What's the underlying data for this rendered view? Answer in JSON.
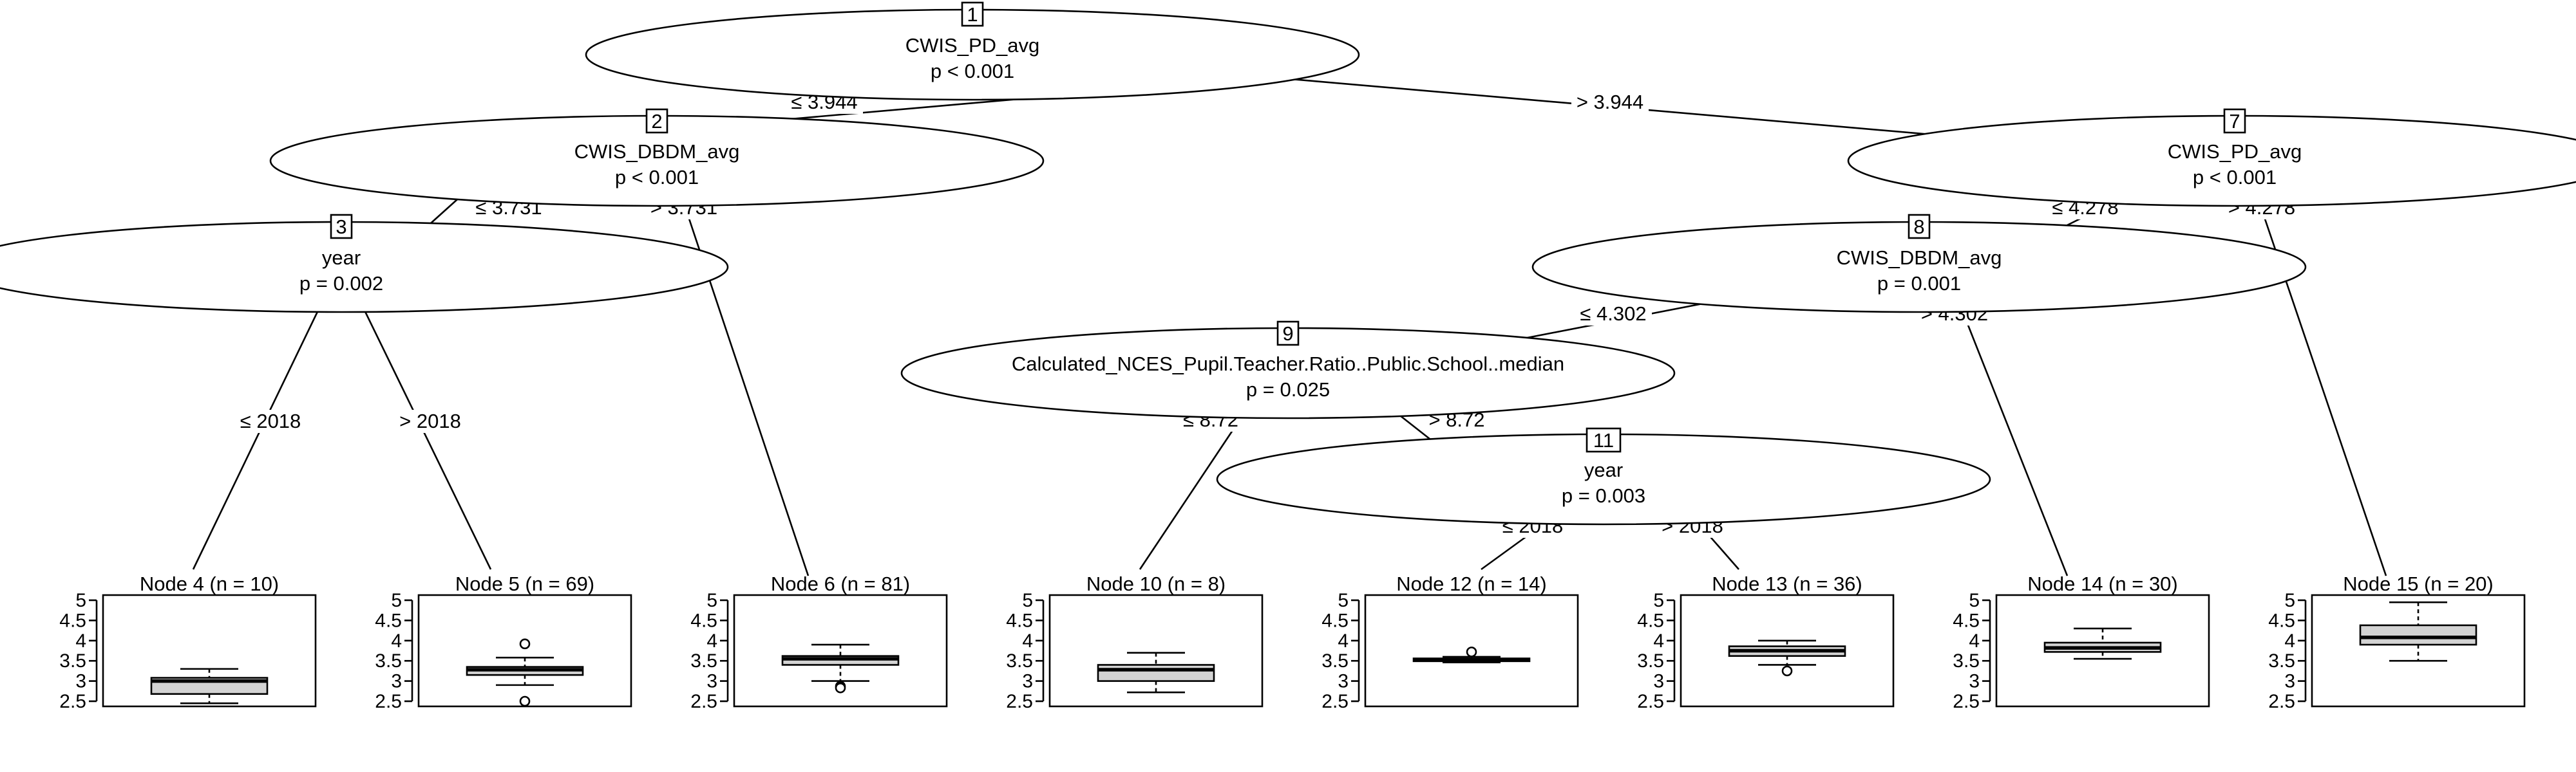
{
  "y_axis_ticks": [
    "5",
    "4.5",
    "4",
    "3.5",
    "3",
    "2.5"
  ],
  "inner_nodes": [
    {
      "id": "1",
      "variable": "CWIS_PD_avg",
      "p": "p < 0.001"
    },
    {
      "id": "2",
      "variable": "CWIS_DBDM_avg",
      "p": "p < 0.001"
    },
    {
      "id": "3",
      "variable": "year",
      "p": "p = 0.002"
    },
    {
      "id": "7",
      "variable": "CWIS_PD_avg",
      "p": "p < 0.001"
    },
    {
      "id": "8",
      "variable": "CWIS_DBDM_avg",
      "p": "p = 0.001"
    },
    {
      "id": "9",
      "variable": "Calculated_NCES_Pupil.Teacher.Ratio..Public.School..median",
      "p": "p = 0.025"
    },
    {
      "id": "11",
      "variable": "year",
      "p": "p = 0.003"
    }
  ],
  "edges": [
    {
      "from": "1",
      "to": "2",
      "label": "≤ 3.944"
    },
    {
      "from": "1",
      "to": "7",
      "label": "> 3.944"
    },
    {
      "from": "2",
      "to": "3",
      "label": "≤ 3.731"
    },
    {
      "from": "2",
      "to": "6",
      "label": "> 3.731"
    },
    {
      "from": "3",
      "to": "4",
      "label": "≤ 2018"
    },
    {
      "from": "3",
      "to": "5",
      "label": "> 2018"
    },
    {
      "from": "7",
      "to": "8",
      "label": "≤ 4.278"
    },
    {
      "from": "7",
      "to": "15",
      "label": "> 4.278"
    },
    {
      "from": "8",
      "to": "9",
      "label": "≤ 4.302"
    },
    {
      "from": "8",
      "to": "14",
      "label": "> 4.302"
    },
    {
      "from": "9",
      "to": "10",
      "label": "≤ 8.72"
    },
    {
      "from": "9",
      "to": "11",
      "label": "> 8.72"
    },
    {
      "from": "11",
      "to": "12",
      "label": "≤ 2018"
    },
    {
      "from": "11",
      "to": "13",
      "label": "> 2018"
    }
  ],
  "terminal_nodes": [
    {
      "id": "4",
      "title": "Node 4 (n = 10)",
      "box": {
        "whisker_low": 2.45,
        "q1": 2.68,
        "median": 3.0,
        "q3": 3.08,
        "whisker_high": 3.3,
        "outliers": []
      }
    },
    {
      "id": "5",
      "title": "Node 5 (n = 69)",
      "box": {
        "whisker_low": 2.9,
        "q1": 3.15,
        "median": 3.28,
        "q3": 3.35,
        "whisker_high": 3.58,
        "outliers": [
          3.92,
          2.5
        ]
      }
    },
    {
      "id": "6",
      "title": "Node 6 (n = 81)",
      "box": {
        "whisker_low": 3.0,
        "q1": 3.4,
        "median": 3.55,
        "q3": 3.62,
        "whisker_high": 3.9,
        "outliers": [
          2.87,
          2.83
        ]
      }
    },
    {
      "id": "10",
      "title": "Node 10 (n = 8)",
      "box": {
        "whisker_low": 2.72,
        "q1": 3.0,
        "median": 3.28,
        "q3": 3.4,
        "whisker_high": 3.7,
        "outliers": []
      }
    },
    {
      "id": "12",
      "title": "Node 12 (n = 14)",
      "box": {
        "whisker_low": 3.46,
        "q1": 3.49,
        "median": 3.52,
        "q3": 3.56,
        "whisker_high": 3.6,
        "outliers": [
          3.72
        ]
      }
    },
    {
      "id": "13",
      "title": "Node 13 (n = 36)",
      "box": {
        "whisker_low": 3.4,
        "q1": 3.62,
        "median": 3.75,
        "q3": 3.86,
        "whisker_high": 4.0,
        "outliers": [
          3.25
        ]
      }
    },
    {
      "id": "14",
      "title": "Node 14 (n = 30)",
      "box": {
        "whisker_low": 3.55,
        "q1": 3.72,
        "median": 3.82,
        "q3": 3.95,
        "whisker_high": 4.3,
        "outliers": []
      }
    },
    {
      "id": "15",
      "title": "Node 15 (n = 20)",
      "box": {
        "whisker_low": 3.5,
        "q1": 3.9,
        "median": 4.08,
        "q3": 4.38,
        "whisker_high": 4.95,
        "outliers": []
      }
    }
  ]
}
